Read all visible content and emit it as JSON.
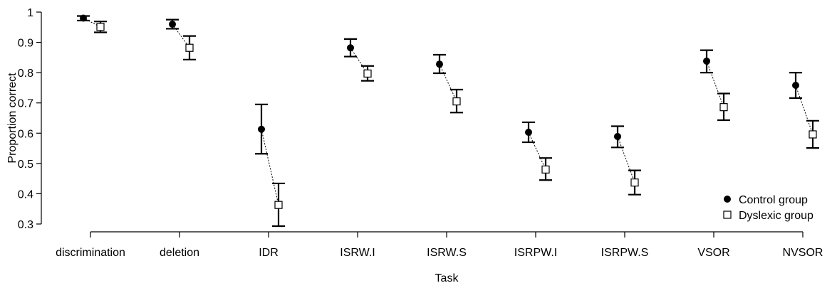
{
  "chart_data": {
    "type": "scatter",
    "title": "",
    "xlabel": "Task",
    "ylabel": "Proportion correct",
    "ylim": [
      0.3,
      1.0
    ],
    "yticks": [
      "0.3",
      "0.4",
      "0.5",
      "0.6",
      "0.7",
      "0.8",
      "0.9",
      "1"
    ],
    "categories": [
      "discrimination",
      "deletion",
      "IDR",
      "ISRW.I",
      "ISRW.S",
      "ISRPW.I",
      "ISRPW.S",
      "VSOR",
      "NVSOR"
    ],
    "grid": false,
    "legend_position": "bottom-right",
    "series": [
      {
        "name": "Control group",
        "marker": "filled-circle",
        "color": "#000000",
        "values": [
          0.98,
          0.96,
          0.613,
          0.882,
          0.828,
          0.603,
          0.589,
          0.838,
          0.758
        ],
        "error_low": [
          0.972,
          0.945,
          0.532,
          0.853,
          0.798,
          0.57,
          0.553,
          0.8,
          0.716
        ],
        "error_high": [
          0.987,
          0.975,
          0.695,
          0.911,
          0.859,
          0.636,
          0.623,
          0.874,
          0.8
        ]
      },
      {
        "name": "Dyslexic group",
        "marker": "open-square",
        "color": "#000000",
        "values": [
          0.951,
          0.882,
          0.363,
          0.797,
          0.705,
          0.48,
          0.437,
          0.686,
          0.596
        ],
        "error_low": [
          0.933,
          0.843,
          0.293,
          0.773,
          0.668,
          0.445,
          0.397,
          0.643,
          0.551
        ],
        "error_high": [
          0.969,
          0.921,
          0.434,
          0.822,
          0.744,
          0.518,
          0.477,
          0.731,
          0.641
        ]
      }
    ]
  }
}
